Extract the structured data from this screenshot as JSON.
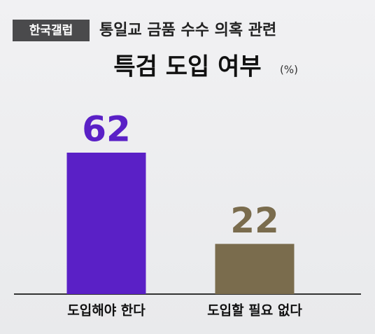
{
  "chart_data": {
    "type": "bar",
    "source": "한국갤럽",
    "title": "통일교 금품 수수 의혹 관련",
    "subtitle": "특검 도입 여부",
    "unit": "(%)",
    "categories": [
      "도입해야 한다",
      "도입할 필요 없다"
    ],
    "values": [
      62,
      22
    ],
    "colors": [
      "#5a20c6",
      "#7a6c4d"
    ]
  }
}
